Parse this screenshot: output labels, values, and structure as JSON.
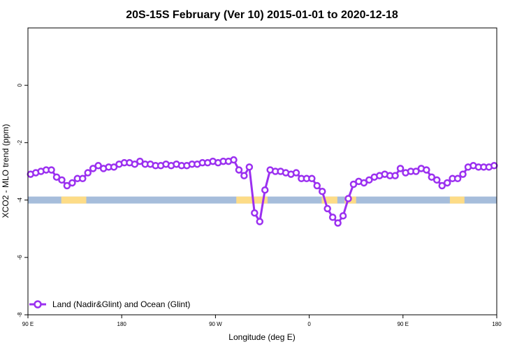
{
  "chart_data": {
    "type": "line",
    "title": "20S-15S February (Ver 10)   2015-01-01 to 2020-12-18",
    "xlabel": "Longitude (deg E)",
    "ylabel": "XCO2 - MLO trend (ppm)",
    "x_tick_labels": [
      "90 E",
      "180",
      "90 W",
      "0",
      "90 E",
      "180"
    ],
    "x_ticks": [
      90,
      180,
      270,
      360,
      450,
      540
    ],
    "y_ticks": [
      0,
      -2,
      -4,
      -6,
      -8
    ],
    "y_tick_labels": [
      "0",
      "-2",
      "-4",
      "-6",
      "-8"
    ],
    "xlim": [
      90,
      540
    ],
    "ylim": [
      -8,
      2
    ],
    "grid": false,
    "legend_position": "bottom-left",
    "series": [
      {
        "name": "Land (Nadir&Glint) and Ocean (Glint)",
        "color": "#9b30f0",
        "x": [
          92.5,
          97.5,
          102.5,
          107.5,
          112.5,
          117.5,
          122.5,
          127.5,
          132.5,
          137.5,
          142.5,
          147.5,
          152.5,
          157.5,
          162.5,
          167.5,
          172.5,
          177.5,
          182.5,
          187.5,
          192.5,
          197.5,
          202.5,
          207.5,
          212.5,
          217.5,
          222.5,
          227.5,
          232.5,
          237.5,
          242.5,
          247.5,
          252.5,
          257.5,
          262.5,
          267.5,
          272.5,
          277.5,
          282.5,
          287.5,
          292.5,
          297.5,
          302.5,
          307.5,
          312.5,
          317.5,
          322.5,
          327.5,
          332.5,
          337.5,
          342.5,
          347.5,
          352.5,
          357.5,
          362.5,
          367.5,
          372.5,
          377.5,
          382.5,
          387.5,
          392.5,
          397.5,
          402.5,
          407.5,
          412.5,
          417.5,
          422.5,
          427.5,
          432.5,
          437.5,
          442.5,
          447.5,
          452.5,
          457.5,
          462.5,
          467.5,
          472.5,
          477.5,
          482.5,
          487.5,
          492.5,
          497.5,
          502.5,
          507.5,
          512.5,
          517.5,
          522.5,
          527.5,
          532.5,
          537.5
        ],
        "y": [
          -3.1,
          -3.05,
          -3.0,
          -2.95,
          -2.95,
          -3.2,
          -3.3,
          -3.5,
          -3.4,
          -3.25,
          -3.25,
          -3.05,
          -2.9,
          -2.8,
          -2.9,
          -2.85,
          -2.85,
          -2.75,
          -2.7,
          -2.7,
          -2.75,
          -2.65,
          -2.75,
          -2.75,
          -2.8,
          -2.8,
          -2.75,
          -2.8,
          -2.75,
          -2.8,
          -2.8,
          -2.75,
          -2.75,
          -2.7,
          -2.7,
          -2.65,
          -2.7,
          -2.65,
          -2.65,
          -2.6,
          -2.95,
          -3.15,
          -2.85,
          -4.45,
          -4.75,
          -3.65,
          -2.95,
          -3.0,
          -3.0,
          -3.05,
          -3.1,
          -3.05,
          -3.25,
          -3.25,
          -3.25,
          -3.5,
          -3.7,
          -4.3,
          -4.6,
          -4.8,
          -4.55,
          -3.95,
          -3.45,
          -3.35,
          -3.4,
          -3.3,
          -3.2,
          -3.15,
          -3.1,
          -3.15,
          -3.15,
          -2.9,
          -3.05,
          -3.0,
          -3.0,
          -2.9,
          -2.95,
          -3.2,
          -3.3,
          -3.5,
          -3.4,
          -3.25,
          -3.25,
          -3.1,
          -2.85,
          -2.8,
          -2.85,
          -2.85,
          -2.85,
          -2.8
        ]
      }
    ],
    "surface_bands": {
      "y": -4.0,
      "ocean_color": "#a6bddb",
      "land_color": "#fddc87",
      "land_ranges": [
        [
          122,
          146
        ],
        [
          290,
          320
        ],
        [
          372,
          387
        ],
        [
          394,
          405
        ],
        [
          495,
          509
        ]
      ]
    }
  }
}
